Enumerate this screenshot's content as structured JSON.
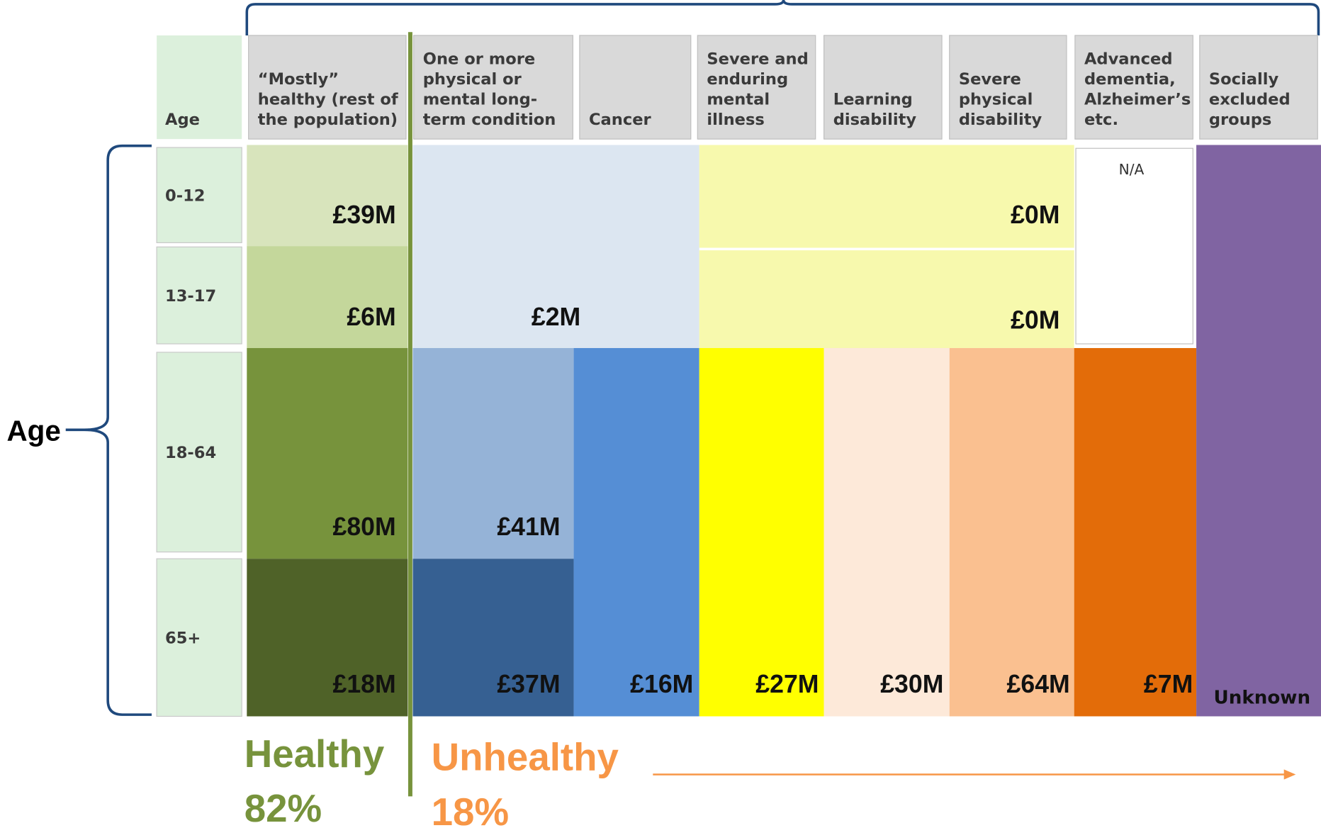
{
  "age_label": "Age",
  "header": {
    "age": "Age",
    "columns": [
      [
        "“Mostly”",
        "healthy (rest of",
        "the population)"
      ],
      [
        "One or more",
        "physical or",
        "mental long-",
        "term condition"
      ],
      [
        "Cancer"
      ],
      [
        "Severe and",
        "enduring",
        "mental",
        "illness"
      ],
      [
        "Learning",
        "disability"
      ],
      [
        "Severe",
        "physical",
        "disability"
      ],
      [
        "Advanced",
        "dementia,",
        "Alzheimer’s",
        "etc."
      ],
      [
        "Socially",
        "excluded",
        "groups"
      ]
    ]
  },
  "rows": [
    "0-12",
    "13-17",
    "18-64",
    "65+"
  ],
  "cells": [
    {
      "label": "£39M",
      "color": "#d8e4bc"
    },
    {
      "label": "£6M",
      "color": "#c4d79b"
    },
    {
      "label": "£80M",
      "color": "#77933c"
    },
    {
      "label": "£18M",
      "color": "#4f6228"
    },
    {
      "label": "£2M",
      "color": "#dce6f1"
    },
    {
      "label": "£41M",
      "color": "#95b3d7"
    },
    {
      "label": "£37M",
      "color": "#366092"
    },
    {
      "label": "£16M",
      "color": "#558ed5"
    },
    {
      "label": "£0M",
      "color": "#f7f9ad"
    },
    {
      "label": "£0M",
      "color": "#f7f9ad"
    },
    {
      "label": "N/A",
      "color": "#ffffff"
    },
    {
      "label": "£27M",
      "color": "#ffff00"
    },
    {
      "label": "£30M",
      "color": "#fde9d9"
    },
    {
      "label": "£64M",
      "color": "#fac090"
    },
    {
      "label": "£7M",
      "color": "#e36c09"
    },
    {
      "label": "Unknown",
      "color": "#8064a2"
    }
  ],
  "healthy": {
    "label": "Healthy",
    "share": "82%",
    "color": "#77933c"
  },
  "unhealthy": {
    "label": "Unhealthy",
    "share": "18%",
    "color": "#f79646"
  }
}
